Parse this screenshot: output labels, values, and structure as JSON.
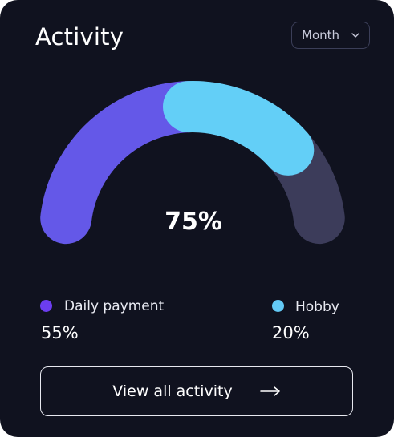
{
  "card": {
    "title": "Activity",
    "period_select": {
      "value": "Month"
    },
    "total_label": "75%",
    "cta_label": "View all activity"
  },
  "legend": [
    {
      "label": "Daily payment",
      "value": "55%",
      "color": "#6c3df0"
    },
    {
      "label": "Hobby",
      "value": "20%",
      "color": "#63c9f5"
    }
  ],
  "colors": {
    "background": "#10121f",
    "track": "#3c3c5a",
    "daily_payment_segment": "#6458e8",
    "hobby_segment": "#63cff7"
  },
  "chart_data": {
    "type": "pie",
    "style": "half-donut gauge",
    "total": 100,
    "segments": [
      {
        "label": "Daily payment",
        "value": 55
      },
      {
        "label": "Hobby",
        "value": 20
      }
    ],
    "remaining": 25,
    "center_label": "75%"
  }
}
